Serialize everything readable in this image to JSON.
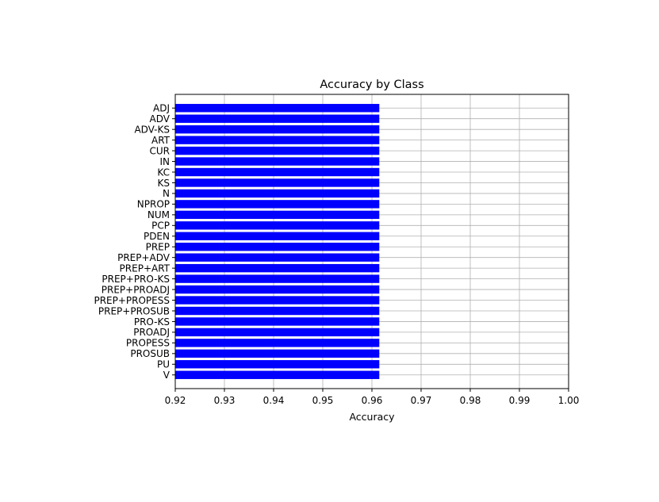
{
  "chart_data": {
    "type": "bar",
    "orientation": "horizontal",
    "title": "Accuracy by Class",
    "xlabel": "Accuracy",
    "ylabel": "",
    "xlim": [
      0.92,
      1.0
    ],
    "xticks": [
      "0.92",
      "0.93",
      "0.94",
      "0.95",
      "0.96",
      "0.97",
      "0.98",
      "0.99",
      "1.00"
    ],
    "grid": true,
    "bar_color": "#0000ff",
    "categories": [
      "ADJ",
      "ADV",
      "ADV-KS",
      "ART",
      "CUR",
      "IN",
      "KC",
      "KS",
      "N",
      "NPROP",
      "NUM",
      "PCP",
      "PDEN",
      "PREP",
      "PREP+ADV",
      "PREP+ART",
      "PREP+PRO-KS",
      "PREP+PROADJ",
      "PREP+PROPESS",
      "PREP+PROSUB",
      "PRO-KS",
      "PROADJ",
      "PROPESS",
      "PROSUB",
      "PU",
      "V"
    ],
    "values": [
      0.9615,
      0.9615,
      0.9615,
      0.9615,
      0.9615,
      0.9615,
      0.9615,
      0.9615,
      0.9615,
      0.9615,
      0.9615,
      0.9615,
      0.9615,
      0.9615,
      0.9615,
      0.9615,
      0.9615,
      0.9615,
      0.9615,
      0.9615,
      0.9615,
      0.9615,
      0.9615,
      0.9615,
      0.9615,
      0.9615
    ]
  }
}
